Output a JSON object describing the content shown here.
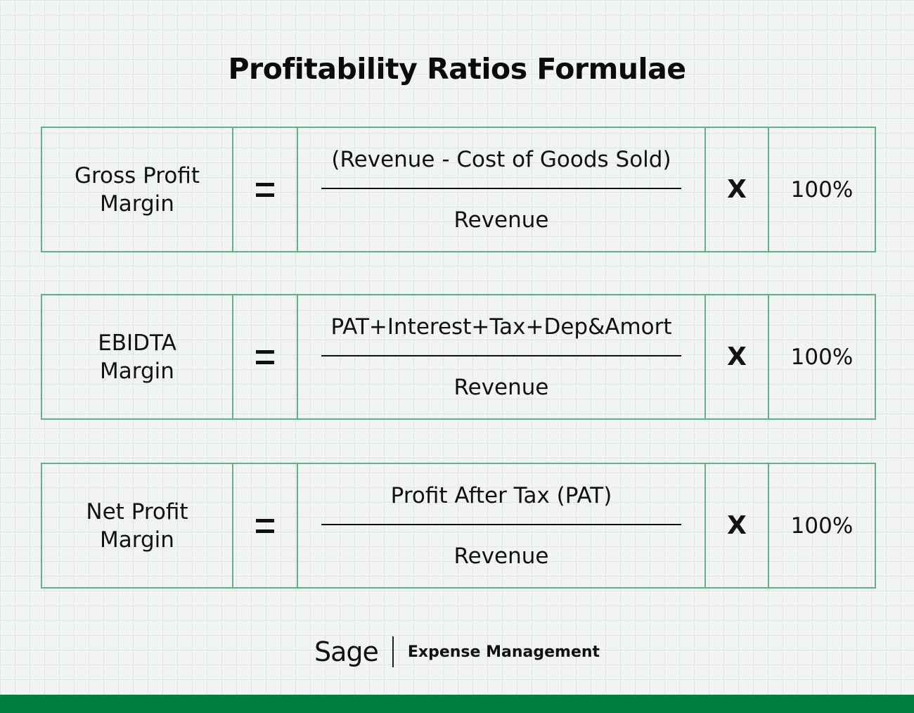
{
  "title": "Profitability Ratios Formulae",
  "formulas": [
    {
      "name_line1": "Gross Profit",
      "name_line2": "Margin",
      "equals": "=",
      "numerator": "(Revenue - Cost of Goods Sold)",
      "denominator": "Revenue",
      "multiply": "X",
      "percent": "100%"
    },
    {
      "name_line1": "EBIDTA",
      "name_line2": "Margin",
      "equals": "=",
      "numerator": "PAT+Interest+Tax+Dep&Amort",
      "denominator": "Revenue",
      "multiply": "X",
      "percent": "100%"
    },
    {
      "name_line1": "Net Profit",
      "name_line2": "Margin",
      "equals": "=",
      "numerator": "Profit After Tax (PAT)",
      "denominator": "Revenue",
      "multiply": "X",
      "percent": "100%"
    }
  ],
  "footer": {
    "logo": "Sage",
    "product": "Expense Management"
  },
  "colors": {
    "border": "#5fb187",
    "accent_bar": "#007e3f",
    "background": "#f2f4f3"
  }
}
